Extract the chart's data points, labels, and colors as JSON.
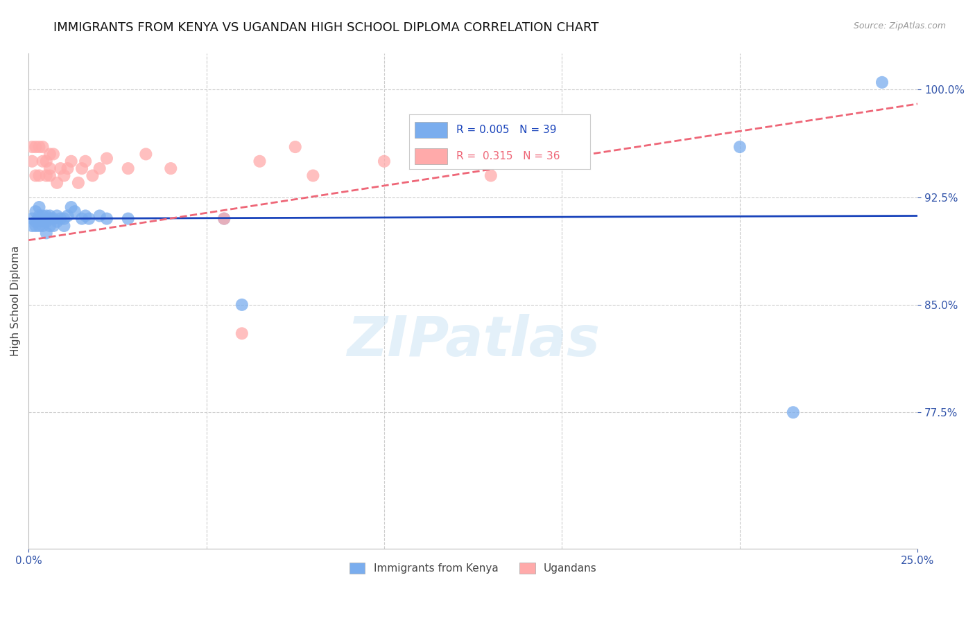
{
  "title": "IMMIGRANTS FROM KENYA VS UGANDAN HIGH SCHOOL DIPLOMA CORRELATION CHART",
  "source": "Source: ZipAtlas.com",
  "ylabel": "High School Diploma",
  "xlim": [
    0.0,
    0.25
  ],
  "ylim": [
    0.68,
    1.025
  ],
  "xtick_labels": [
    "0.0%",
    "25.0%"
  ],
  "xtick_positions": [
    0.0,
    0.25
  ],
  "ytick_labels": [
    "77.5%",
    "85.0%",
    "92.5%",
    "100.0%"
  ],
  "ytick_positions": [
    0.775,
    0.85,
    0.925,
    1.0
  ],
  "grid_color": "#cccccc",
  "background_color": "#ffffff",
  "title_fontsize": 13,
  "axis_label_color": "#3355aa",
  "tick_label_color": "#3355aa",
  "series1_color": "#7aadee",
  "series2_color": "#ffaaaa",
  "trendline1_color": "#1a44bb",
  "trendline2_color": "#ee6677",
  "watermark_text": "ZIPatlas",
  "legend_color1": "#7aadee",
  "legend_color2": "#ffaaaa",
  "series1_x": [
    0.001,
    0.001,
    0.002,
    0.002,
    0.002,
    0.003,
    0.003,
    0.003,
    0.003,
    0.004,
    0.004,
    0.004,
    0.005,
    0.005,
    0.005,
    0.006,
    0.006,
    0.006,
    0.007,
    0.007,
    0.008,
    0.008,
    0.009,
    0.01,
    0.01,
    0.011,
    0.012,
    0.013,
    0.015,
    0.016,
    0.017,
    0.02,
    0.022,
    0.028,
    0.055,
    0.06,
    0.2,
    0.215,
    0.24
  ],
  "series1_y": [
    0.905,
    0.91,
    0.905,
    0.915,
    0.908,
    0.912,
    0.905,
    0.91,
    0.918,
    0.908,
    0.912,
    0.905,
    0.908,
    0.912,
    0.9,
    0.91,
    0.905,
    0.912,
    0.91,
    0.905,
    0.912,
    0.908,
    0.91,
    0.91,
    0.905,
    0.912,
    0.918,
    0.915,
    0.91,
    0.912,
    0.91,
    0.912,
    0.91,
    0.91,
    0.91,
    0.85,
    0.96,
    0.775,
    1.005
  ],
  "series2_x": [
    0.001,
    0.001,
    0.002,
    0.002,
    0.003,
    0.003,
    0.004,
    0.004,
    0.005,
    0.005,
    0.006,
    0.006,
    0.006,
    0.007,
    0.008,
    0.009,
    0.01,
    0.011,
    0.012,
    0.014,
    0.015,
    0.016,
    0.018,
    0.02,
    0.022,
    0.028,
    0.033,
    0.04,
    0.055,
    0.065,
    0.075,
    0.1,
    0.11,
    0.13,
    0.06,
    0.08
  ],
  "series2_y": [
    0.95,
    0.96,
    0.94,
    0.96,
    0.94,
    0.96,
    0.95,
    0.96,
    0.94,
    0.95,
    0.94,
    0.945,
    0.955,
    0.955,
    0.935,
    0.945,
    0.94,
    0.945,
    0.95,
    0.935,
    0.945,
    0.95,
    0.94,
    0.945,
    0.952,
    0.945,
    0.955,
    0.945,
    0.91,
    0.95,
    0.96,
    0.95,
    0.96,
    0.94,
    0.83,
    0.94
  ],
  "trendline1_x": [
    0.0,
    0.25
  ],
  "trendline1_y": [
    0.91,
    0.912
  ],
  "trendline2_x": [
    0.0,
    0.25
  ],
  "trendline2_y": [
    0.895,
    0.99
  ]
}
